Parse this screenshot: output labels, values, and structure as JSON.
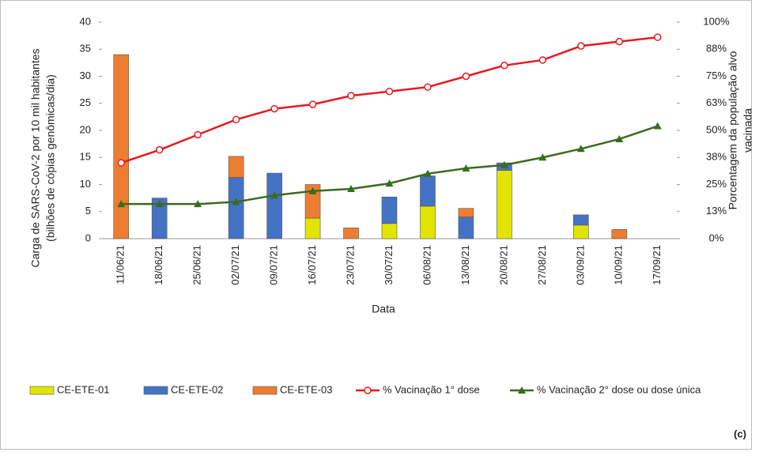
{
  "chart_data": {
    "type": "bar-line",
    "ylabel": [
      "Carga de SARS-CoV-2 por 10 mil habitantes",
      "(bilhões de cópias genômicas/dia)"
    ],
    "y2label": [
      "Porcentagem da população alvo",
      "vacinada"
    ],
    "xlabel": "Data",
    "annotation": "(c)",
    "categories": [
      "11/06/21",
      "18/06/21",
      "25/06/21",
      "02/07/21",
      "09/07/21",
      "16/07/21",
      "23/07/21",
      "30/07/21",
      "06/08/21",
      "13/08/21",
      "20/08/21",
      "27/08/21",
      "03/09/21",
      "10/09/21",
      "17/09/21"
    ],
    "ylim": [
      0,
      40
    ],
    "yticks": [
      0,
      5,
      10,
      15,
      20,
      25,
      30,
      35,
      40
    ],
    "y2lim": [
      0,
      100
    ],
    "y2ticks": [
      {
        "value": 0,
        "label": "0%"
      },
      {
        "value": 12.5,
        "label": "13%"
      },
      {
        "value": 25,
        "label": "25%"
      },
      {
        "value": 37.5,
        "label": "38%"
      },
      {
        "value": 50,
        "label": "50%"
      },
      {
        "value": 62.5,
        "label": "63%"
      },
      {
        "value": 75,
        "label": "75%"
      },
      {
        "value": 87.5,
        "label": "88%"
      },
      {
        "value": 100,
        "label": "100%"
      }
    ],
    "series": [
      {
        "name": "CE-ETE-01",
        "kind": "bar",
        "color": "#e3e300",
        "values": [
          0,
          0,
          0,
          0,
          0,
          3.8,
          0,
          2.8,
          6.0,
          0,
          12.6,
          0,
          2.5,
          0,
          0
        ]
      },
      {
        "name": "CE-ETE-02",
        "kind": "bar",
        "color": "#4472c4",
        "values": [
          0,
          7.5,
          0,
          11.3,
          12.1,
          0,
          0,
          4.9,
          5.6,
          4.0,
          1.4,
          0,
          1.9,
          0,
          0
        ]
      },
      {
        "name": "CE-ETE-03",
        "kind": "bar",
        "color": "#ed7d31",
        "values": [
          34,
          0,
          0,
          3.9,
          0,
          6.2,
          2.0,
          0,
          0,
          1.6,
          0,
          0,
          0,
          1.7,
          0
        ]
      },
      {
        "name": "% Vacinação 1° dose",
        "kind": "line",
        "axis": "y2",
        "color": "#e8191e",
        "marker": "circle",
        "values": [
          35,
          41,
          48,
          55,
          60,
          62,
          66,
          68,
          70,
          75,
          80,
          82.5,
          89,
          91,
          93
        ]
      },
      {
        "name": "% Vacinação 2° dose ou dose única",
        "kind": "line",
        "axis": "y2",
        "color": "#3a6b1f",
        "marker": "triangle",
        "values": [
          16,
          16,
          16,
          17,
          20,
          22,
          23,
          25.5,
          30,
          32.5,
          34,
          37.5,
          41.5,
          46,
          52
        ]
      }
    ]
  }
}
